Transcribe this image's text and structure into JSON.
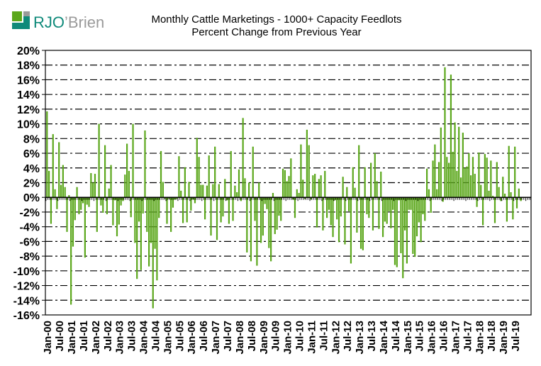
{
  "logo": {
    "text": "RJO'Brien",
    "colors": {
      "green": "#5BA71B",
      "teal": "#0F8A7A",
      "gray": "#9A9A9A"
    }
  },
  "chart_data": {
    "type": "bar",
    "title": "Monthly Cattle Marketings  - 1000+ Capacity Feedlots",
    "subtitle": "Percent Change from Previous Year",
    "xlabel": "",
    "ylabel": "",
    "x_start": "Jan-00",
    "frequency": "monthly",
    "ylim": [
      -16,
      20
    ],
    "ytick_step": 2,
    "yticks": [
      "20%",
      "18%",
      "16%",
      "14%",
      "12%",
      "10%",
      "8%",
      "6%",
      "4%",
      "2%",
      "0%",
      "-2%",
      "-4%",
      "-6%",
      "-8%",
      "-10%",
      "-12%",
      "-14%",
      "-16%"
    ],
    "xticks": [
      "Jan-00",
      "Jul-00",
      "Jan-01",
      "Jul-01",
      "Jan-02",
      "Jul-02",
      "Jan-03",
      "Jul-03",
      "Jan-04",
      "Jul-04",
      "Jan-05",
      "Jul-05",
      "Jan-06",
      "Jul-06",
      "Jan-07",
      "Jul-07",
      "Jan-08",
      "Jul-08",
      "Jan-09",
      "Jul-09",
      "Jan-10",
      "Jul-10",
      "Jan-11",
      "Jul-11",
      "Jan-12",
      "Jul-12",
      "Jan-13",
      "Jul-13",
      "Jan-14",
      "Jul-14",
      "Jan-15",
      "Jul-15",
      "Jan-16",
      "Jul-16",
      "Jan-17",
      "Jul-17",
      "Jan-18",
      "Jul-18",
      "Jan-19",
      "Jul-19"
    ],
    "grid": "horizontal dash-dot",
    "legend": "none",
    "bar_color": "#5BA71B",
    "values": [
      11.7,
      3.6,
      -3.6,
      8.6,
      1.1,
      -1.6,
      7.5,
      1.7,
      4.4,
      1.4,
      -4.7,
      0.3,
      -14.6,
      -6.7,
      -3.1,
      1.4,
      -2.3,
      -1.7,
      -0.8,
      -8.2,
      -1.0,
      -1.3,
      3.3,
      2.0,
      3.2,
      -4.7,
      10.0,
      -1.1,
      -2.1,
      7.1,
      -2.3,
      1.2,
      4.4,
      -3.8,
      -0.4,
      -5.3,
      -3.7,
      -1.1,
      -0.5,
      3.1,
      7.3,
      3.6,
      -2.7,
      10.0,
      -6.2,
      -11.1,
      -3.3,
      -9.9,
      -2.2,
      9.1,
      -4.7,
      -9.4,
      -6.2,
      -15.1,
      -7.0,
      -11.3,
      -2.8,
      6.3,
      2.1,
      -0.2,
      -3.6,
      -0.2,
      -4.7,
      -1.4,
      -0.3,
      -0.2,
      5.6,
      0.9,
      -3.5,
      4.1,
      -3.4,
      2.1,
      -1.8,
      -0.3,
      -0.8,
      8.1,
      5.5,
      1.7,
      1.7,
      -3.0,
      1.6,
      5.7,
      -5.2,
      1.8,
      6.9,
      -5.8,
      1.8,
      -3.4,
      -2.6,
      2.5,
      -0.4,
      -3.6,
      6.3,
      -3.2,
      1.6,
      0.7,
      3.8,
      -0.5,
      10.8,
      2.6,
      -7.5,
      2.0,
      -8.7,
      6.9,
      -3.2,
      -9.3,
      2.0,
      -6.2,
      -5.2,
      -0.9,
      -1.6,
      -6.9,
      -8.7,
      0.6,
      -5.0,
      -4.4,
      -2.5,
      -3.2,
      3.9,
      3.7,
      2.2,
      2.9,
      5.3,
      -0.3,
      -2.8,
      1.1,
      0.6,
      7.2,
      2.4,
      -0.2,
      9.2,
      7.1,
      -0.3,
      3.0,
      3.2,
      -4.1,
      2.5,
      3.0,
      -4.5,
      3.6,
      -2.8,
      -1.7,
      -3.8,
      -5.4,
      -0.4,
      -3.0,
      -6.1,
      -2.6,
      2.8,
      -6.4,
      1.4,
      -1.9,
      -9.0,
      4.1,
      1.3,
      -4.8,
      7.1,
      -7.0,
      -7.2,
      4.1,
      -2.3,
      -2.8,
      4.7,
      -4.5,
      6.0,
      2.2,
      -4.3,
      3.5,
      -5.4,
      -3.3,
      -3.6,
      -1.9,
      -4.2,
      -1.7,
      -9.2,
      -9.5,
      -0.4,
      -7.6,
      -11.0,
      -4.5,
      -9.0,
      -1.7,
      -1.7,
      -7.7,
      -8.1,
      -5.3,
      -3.4,
      -6.1,
      -2.3,
      -3.2,
      3.9,
      1.1,
      -2.1,
      5.0,
      7.2,
      1.1,
      4.8,
      9.5,
      -0.6,
      17.7,
      5.5,
      4.7,
      16.7,
      6.2,
      10.2,
      3.6,
      9.6,
      2.7,
      8.8,
      4.0,
      4.2,
      6.0,
      3.0,
      5.5,
      3.2,
      -1.3,
      6.1,
      1.7,
      -3.8,
      5.9,
      5.4,
      0.9,
      5.0,
      0.2,
      -3.5,
      4.8,
      1.4,
      -0.5,
      2.8,
      0.5,
      -3.3,
      7.0,
      0.7,
      -3.0,
      6.9,
      -1.5,
      1.2,
      -0.5
    ]
  }
}
